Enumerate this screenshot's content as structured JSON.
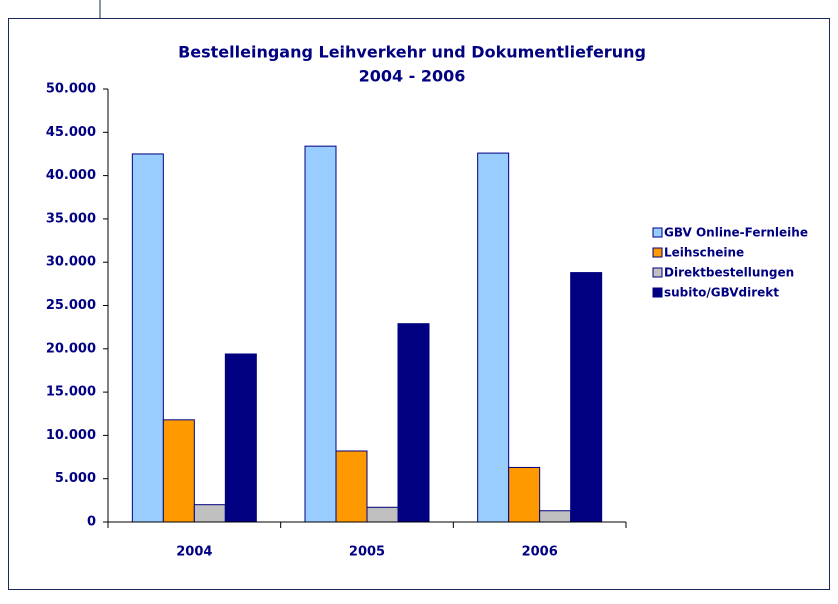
{
  "chart_data": {
    "type": "bar",
    "title": "Bestelleingang Leihverkehr und Dokumentlieferung",
    "subtitle": "2004 - 2006",
    "categories": [
      "2004",
      "2005",
      "2006"
    ],
    "series": [
      {
        "name": "GBV Online-Fernleihe",
        "color": "#99ccff",
        "values": [
          42500,
          43400,
          42600
        ]
      },
      {
        "name": "Leihscheine",
        "color": "#ff9900",
        "values": [
          11800,
          8200,
          6300
        ]
      },
      {
        "name": "Direktbestellungen",
        "color": "#c0c0c0",
        "values": [
          2000,
          1700,
          1300
        ]
      },
      {
        "name": "subito/GBVdirekt",
        "color": "#000080",
        "values": [
          19400,
          22900,
          28800
        ]
      }
    ],
    "ylim": [
      0,
      50000
    ],
    "yticks": [
      0,
      {
        "value": 5000,
        "label": "5.000"
      },
      {
        "value": 10000,
        "label": "10.000"
      },
      {
        "value": 15000,
        "label": "15.000"
      },
      {
        "value": 20000,
        "label": "20.000"
      },
      {
        "value": 25000,
        "label": "25.000"
      },
      {
        "value": 30000,
        "label": "30.000"
      },
      {
        "value": 35000,
        "label": "35.000"
      },
      {
        "value": 40000,
        "label": "40.000"
      },
      {
        "value": 45000,
        "label": "45.000"
      },
      {
        "value": 50000,
        "label": "50.000"
      }
    ],
    "grid": false,
    "legend": "right"
  }
}
